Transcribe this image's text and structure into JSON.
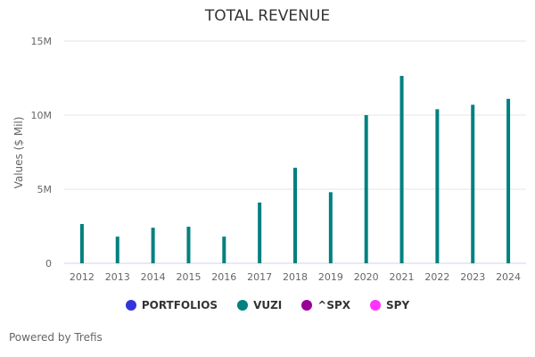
{
  "chart_data": {
    "type": "bar",
    "title": "TOTAL REVENUE",
    "xlabel": "",
    "ylabel": "Values ($ Mil)",
    "ylim": [
      0,
      15000000
    ],
    "yticks": [
      0,
      5000000,
      10000000,
      15000000
    ],
    "ytick_labels": [
      "0",
      "5M",
      "10M",
      "15M"
    ],
    "grid": true,
    "categories": [
      "2012",
      "2013",
      "2014",
      "2015",
      "2016",
      "2017",
      "2018",
      "2019",
      "2020",
      "2021",
      "2022",
      "2023",
      "2024"
    ],
    "series": [
      {
        "name": "VUZI",
        "color": "#008080",
        "values": [
          2650000,
          1800000,
          2400000,
          2470000,
          1800000,
          4100000,
          6450000,
          4800000,
          10000000,
          12650000,
          10400000,
          10700000,
          11100000
        ]
      }
    ],
    "legend_position": "bottom",
    "legend": [
      {
        "label": "PORTFOLIOS",
        "color": "#3333dd"
      },
      {
        "label": "VUZI",
        "color": "#008080"
      },
      {
        "label": "^SPX",
        "color": "#990099"
      },
      {
        "label": "SPY",
        "color": "#ff33ff"
      }
    ]
  },
  "footer": {
    "credit": "Powered by Trefis"
  }
}
